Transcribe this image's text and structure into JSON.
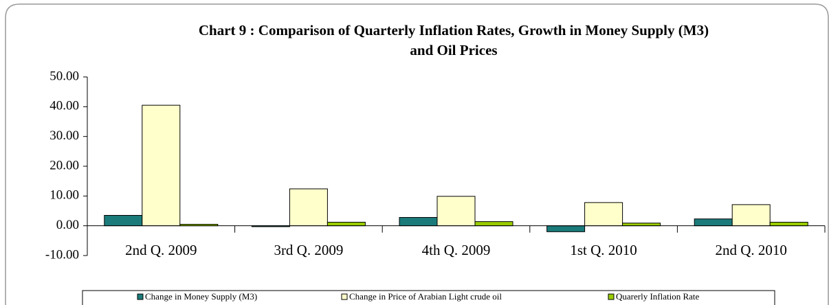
{
  "chart_data": {
    "type": "bar",
    "title": [
      "Chart 9 : Comparison of Quarterly Inflation Rates, Growth in Money Supply (M3)",
      "and Oil Prices"
    ],
    "categories": [
      "2nd Q. 2009",
      "3rd Q. 2009",
      "4th Q. 2009",
      "1st Q. 2010",
      "2nd Q. 2010"
    ],
    "series": [
      {
        "name": "Change in Money Supply (M3)",
        "color": "#1b7b7b",
        "values": [
          3.5,
          -0.3,
          2.8,
          -2.0,
          2.3
        ]
      },
      {
        "name": "Change in Price of Arabian Light crude oil",
        "color": "#ffffcc",
        "values": [
          40.5,
          12.4,
          9.9,
          7.8,
          7.1
        ]
      },
      {
        "name": "Quarerly Inflation Rate",
        "color": "#99cc00",
        "values": [
          0.5,
          1.2,
          1.4,
          0.9,
          1.2
        ]
      }
    ],
    "ylim": [
      -10,
      50
    ],
    "yticks": [
      {
        "value": -10,
        "label": "-10.00"
      },
      {
        "value": 0,
        "label": "0.00"
      },
      {
        "value": 10,
        "label": "10.00"
      },
      {
        "value": 20,
        "label": "20.00"
      },
      {
        "value": 30,
        "label": "30.00"
      },
      {
        "value": 40,
        "label": "40.00"
      },
      {
        "value": 50,
        "label": "50.00"
      }
    ],
    "legend": "bottom"
  }
}
